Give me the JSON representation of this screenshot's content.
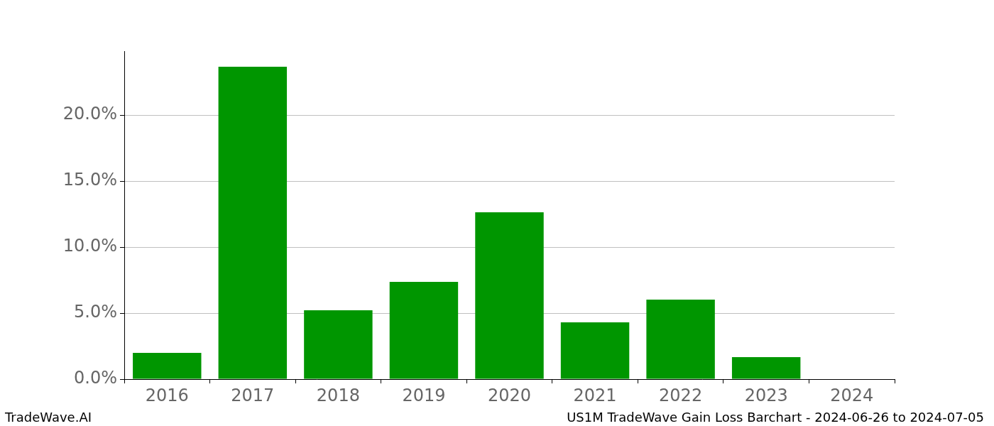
{
  "chart_data": {
    "type": "bar",
    "categories": [
      "2016",
      "2017",
      "2018",
      "2019",
      "2020",
      "2021",
      "2022",
      "2023",
      "2024"
    ],
    "values": [
      1.99,
      23.66,
      5.22,
      7.37,
      12.63,
      4.3,
      6.02,
      1.67,
      0
    ],
    "color": "#009600",
    "ylim": [
      0,
      24.84
    ],
    "yticks": [
      {
        "value": 0,
        "label": "0.0%"
      },
      {
        "value": 5,
        "label": "5.0%"
      },
      {
        "value": 10,
        "label": "10.0%"
      },
      {
        "value": 15,
        "label": "15.0%"
      },
      {
        "value": 20,
        "label": "20.0%"
      }
    ],
    "grid": true,
    "footer": {
      "left": "TradeWave.AI",
      "right": "US1M TradeWave Gain Loss Barchart - 2024-06-26 to 2024-07-05"
    }
  }
}
